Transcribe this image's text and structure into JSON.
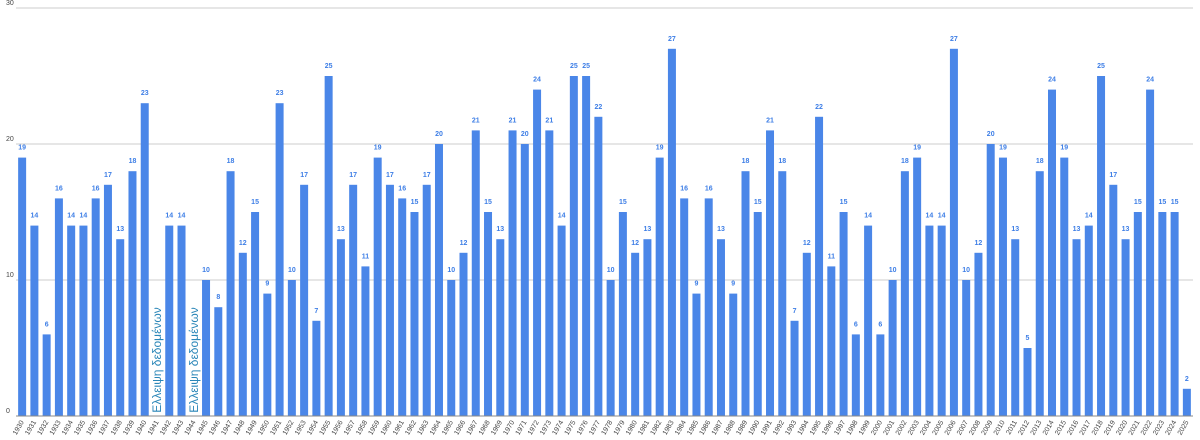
{
  "chart_data": {
    "type": "bar",
    "categories": [
      "1930",
      "1931",
      "1932",
      "1933",
      "1934",
      "1935",
      "1936",
      "1937",
      "1938",
      "1939",
      "1940",
      "1941",
      "1942",
      "1943",
      "1944",
      "1945",
      "1946",
      "1947",
      "1948",
      "1949",
      "1950",
      "1951",
      "1952",
      "1953",
      "1954",
      "1955",
      "1956",
      "1957",
      "1958",
      "1959",
      "1960",
      "1961",
      "1962",
      "1963",
      "1964",
      "1965",
      "1966",
      "1967",
      "1968",
      "1969",
      "1970",
      "1971",
      "1972",
      "1973",
      "1974",
      "1975",
      "1976",
      "1977",
      "1978",
      "1979",
      "1980",
      "1981",
      "1982",
      "1983",
      "1984",
      "1985",
      "1986",
      "1987",
      "1988",
      "1989",
      "1990",
      "1991",
      "1992",
      "1993",
      "1994",
      "1995",
      "1996",
      "1997",
      "1998",
      "1999",
      "2000",
      "2001",
      "2002",
      "2003",
      "2004",
      "2005",
      "2006",
      "2007",
      "2008",
      "2009",
      "2010",
      "2011",
      "2012",
      "2013",
      "2014",
      "2015",
      "2016",
      "2017",
      "2018",
      "2019",
      "2020",
      "2021",
      "2022",
      "2023",
      "2024",
      "2025"
    ],
    "values": [
      19,
      14,
      6,
      16,
      14,
      14,
      16,
      17,
      13,
      18,
      23,
      null,
      14,
      14,
      null,
      10,
      8,
      18,
      12,
      15,
      9,
      23,
      10,
      17,
      7,
      25,
      13,
      17,
      11,
      19,
      17,
      16,
      15,
      17,
      20,
      10,
      12,
      21,
      15,
      13,
      21,
      20,
      24,
      21,
      14,
      25,
      25,
      22,
      10,
      15,
      12,
      13,
      19,
      27,
      16,
      9,
      16,
      13,
      9,
      18,
      15,
      21,
      18,
      7,
      12,
      22,
      11,
      15,
      6,
      14,
      6,
      10,
      18,
      19,
      14,
      14,
      27,
      10,
      12,
      20,
      19,
      13,
      5,
      18,
      24,
      19,
      13,
      14,
      25,
      17,
      13,
      15,
      24,
      15,
      15,
      2
    ],
    "color": "#4a86e8",
    "missing_label": "Ελλειψη δεδομένων",
    "ylim": [
      0,
      30
    ],
    "yticks": [
      0,
      10,
      20,
      30
    ],
    "grid": true
  }
}
